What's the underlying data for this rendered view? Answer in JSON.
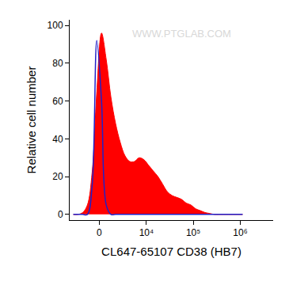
{
  "chart_data": {
    "type": "histogram",
    "x_label": "CL647-65107 CD38 (HB7)",
    "y_label": "Relative cell number",
    "annotations": [
      "WWW.PTGLAB.COM"
    ],
    "bins": [
      -3734,
      -2842,
      -2113,
      -1494,
      -954,
      -465,
      0,
      465,
      954,
      1494,
      2113,
      2842,
      3734,
      4812,
      6151,
      7817,
      9900,
      12510,
      15786,
      19903,
      25079,
      31591,
      39786,
      50100,
      63080,
      79420,
      99990,
      125890,
      158490,
      199520,
      251190,
      316230,
      398110,
      501190,
      630960,
      794330,
      1000000,
      1258900
    ],
    "series": [
      {
        "color": "#ff0000",
        "values": [
          0,
          0,
          1,
          5,
          22,
          65,
          96,
          82,
          62,
          48,
          38,
          31,
          28,
          28,
          30,
          29,
          26,
          23,
          20,
          16,
          12,
          10,
          9,
          8,
          6,
          5,
          3,
          2,
          1,
          0.5,
          0,
          0,
          0,
          0,
          0,
          0,
          0
        ]
      },
      {
        "color": "#2020c8",
        "values": [
          0,
          0,
          0,
          0,
          15,
          92,
          60,
          5,
          0,
          0,
          0,
          0,
          0,
          0,
          0,
          0,
          0,
          0,
          0,
          0,
          0,
          0,
          0,
          0,
          0,
          0,
          0,
          0,
          0,
          0,
          0,
          0,
          0,
          0,
          0,
          0,
          0
        ]
      }
    ],
    "xlim": [
      -4000,
      5000000
    ],
    "xticks": [
      0,
      {
        "value": 10000,
        "label": "10⁴"
      },
      {
        "value": 100000,
        "label": "10⁵"
      },
      {
        "value": 1000000,
        "label": "10⁶"
      }
    ],
    "ylim": [
      -3,
      103
    ],
    "yticks": [
      0,
      20,
      40,
      60,
      80,
      100
    ],
    "grid": false
  }
}
